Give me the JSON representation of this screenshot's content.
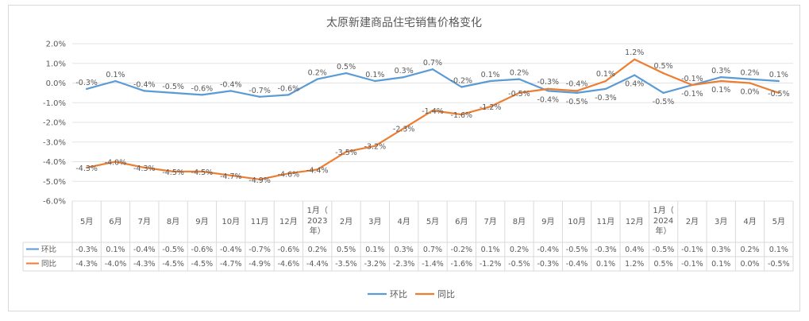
{
  "chart_data": {
    "type": "line",
    "title": "太原新建商品住宅销售价格变化",
    "categories": [
      [
        "5月"
      ],
      [
        "6月"
      ],
      [
        "7月"
      ],
      [
        "8月"
      ],
      [
        "9月"
      ],
      [
        "10月"
      ],
      [
        "11月"
      ],
      [
        "12月"
      ],
      [
        "1月（",
        "2023",
        "年）"
      ],
      [
        "2月"
      ],
      [
        "3月"
      ],
      [
        "4月"
      ],
      [
        "5月"
      ],
      [
        "6月"
      ],
      [
        "7月"
      ],
      [
        "8月"
      ],
      [
        "9月"
      ],
      [
        "10月"
      ],
      [
        "11月"
      ],
      [
        "12月"
      ],
      [
        "1月（",
        "2024",
        "年）"
      ],
      [
        "2月"
      ],
      [
        "3月"
      ],
      [
        "4月"
      ],
      [
        "5月"
      ]
    ],
    "y_ticks": [
      "2.0%",
      "1.0%",
      "0.0%",
      "-1.0%",
      "-2.0%",
      "-3.0%",
      "-4.0%",
      "-5.0%",
      "-6.0%"
    ],
    "ylim": [
      -6.0,
      2.0
    ],
    "series": [
      {
        "name": "环比",
        "color": "#5b9bd5",
        "values": [
          -0.3,
          0.1,
          -0.4,
          -0.5,
          -0.6,
          -0.4,
          -0.7,
          -0.6,
          0.2,
          0.5,
          0.1,
          0.3,
          0.7,
          -0.2,
          0.1,
          0.2,
          -0.4,
          -0.5,
          -0.3,
          0.4,
          -0.5,
          -0.1,
          0.3,
          0.2,
          0.1
        ],
        "labels": [
          "-0.3%",
          "0.1%",
          "-0.4%",
          "-0.5%",
          "-0.6%",
          "-0.4%",
          "-0.7%",
          "-0.6%",
          "0.2%",
          "0.5%",
          "0.1%",
          "0.3%",
          "0.7%",
          "-0.2%",
          "0.1%",
          "0.2%",
          "-0.4%",
          "-0.5%",
          "-0.3%",
          "0.4%",
          "-0.5%",
          "-0.1%",
          "0.3%",
          "0.2%",
          "0.1%"
        ]
      },
      {
        "name": "同比",
        "color": "#ed7d31",
        "values": [
          -4.3,
          -4.0,
          -4.3,
          -4.5,
          -4.5,
          -4.7,
          -4.9,
          -4.6,
          -4.4,
          -3.5,
          -3.2,
          -2.3,
          -1.4,
          -1.6,
          -1.2,
          -0.5,
          -0.3,
          -0.4,
          0.1,
          1.2,
          0.5,
          -0.1,
          0.1,
          0.0,
          -0.5
        ],
        "labels": [
          "-4.3%",
          "-4.0%",
          "-4.3%",
          "-4.5%",
          "-4.5%",
          "-4.7%",
          "-4.9%",
          "-4.6%",
          "-4.4%",
          "-3.5%",
          "-3.2%",
          "-2.3%",
          "-1.4%",
          "-1.6%",
          "-1.2%",
          "-0.5%",
          "-0.3%",
          "-0.4%",
          "0.1%",
          "1.2%",
          "0.5%",
          "-0.1%",
          "0.1%",
          "0.0%",
          "-0.5%"
        ]
      }
    ],
    "legend": [
      "环比",
      "同比"
    ],
    "legend_position": "bottom",
    "grid": true
  }
}
